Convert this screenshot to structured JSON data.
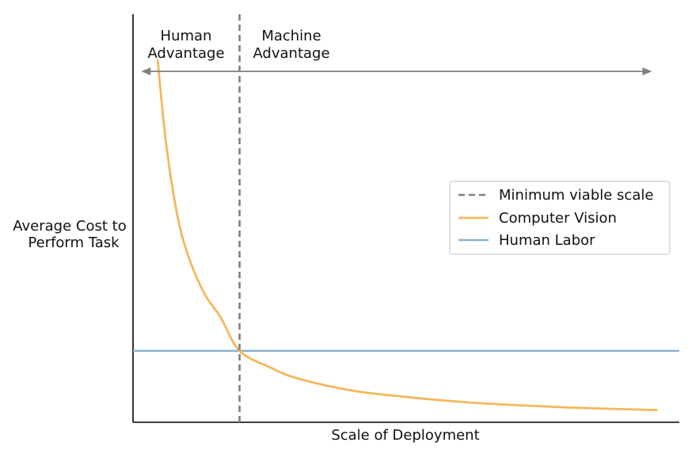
{
  "chart_data": {
    "type": "line",
    "title": "",
    "xlabel": "Scale of Deployment",
    "ylabel_lines": [
      "Average Cost to",
      "Perform Task"
    ],
    "xlim": [
      0,
      10
    ],
    "ylim": [
      0,
      10
    ],
    "ticks_shown": false,
    "grid": false,
    "legend_position": "center-right",
    "series": [
      {
        "name": "Computer Vision",
        "color": "#f5b75c",
        "kind": "curve",
        "x": [
          0.45,
          0.6,
          0.8,
          1.0,
          1.3,
          1.6,
          1.95,
          2.5,
          3.0,
          4.0,
          5.0,
          6.0,
          7.0,
          8.0,
          9.0,
          9.6
        ],
        "y": [
          8.9,
          6.9,
          5.15,
          4.12,
          3.17,
          2.58,
          1.75,
          1.35,
          1.08,
          0.78,
          0.62,
          0.5,
          0.42,
          0.36,
          0.32,
          0.3
        ]
      },
      {
        "name": "Human Labor",
        "color": "#8ab0cc",
        "kind": "horizontal",
        "y": 1.75
      },
      {
        "name": "Minimum viable scale",
        "color": "#808080",
        "kind": "vertical-dashed",
        "x": 1.95
      }
    ],
    "annotations": [
      {
        "lines": [
          "Human",
          "Advantage"
        ],
        "region": "left-of-threshold"
      },
      {
        "lines": [
          "Machine",
          "Advantage"
        ],
        "region": "right-of-threshold"
      }
    ],
    "arrow": {
      "from": 0.15,
      "to": 9.5,
      "y": 8.6,
      "color": "#808080"
    }
  }
}
